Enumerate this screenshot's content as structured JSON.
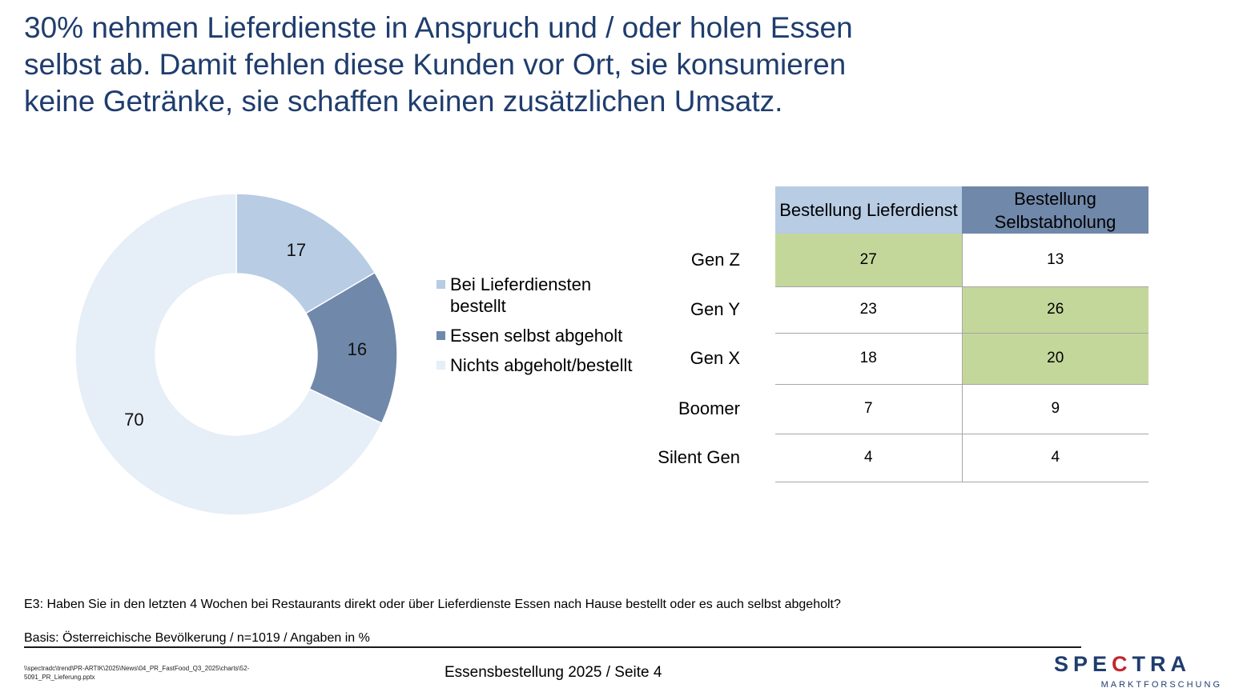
{
  "title": "30% nehmen Lieferdienste in Anspruch und / oder holen Essen selbst ab. Damit fehlen diese Kunden vor Ort, sie konsumieren keine Getränke, sie schaffen keinen zusätzlichen Umsatz.",
  "chart_data": [
    {
      "type": "pie",
      "style": "donut",
      "labels": [
        "Bei Lieferdiensten bestellt",
        "Essen selbst abgeholt",
        "Nichts abgeholt/bestellt"
      ],
      "values": [
        17,
        16,
        70
      ],
      "value_labels": [
        "17",
        "16",
        "70"
      ],
      "colors": [
        "#b8cce4",
        "#7088aa",
        "#e6eef7"
      ],
      "legend_position": "right"
    },
    {
      "type": "table",
      "columns": [
        "Bestellung Lieferdienst",
        "Bestellung Selbstabholung"
      ],
      "column_colors": [
        "#b8cce4",
        "#7088aa"
      ],
      "highlight_color": "#c4d79b",
      "rows": [
        {
          "label": "Gen Z",
          "values": [
            "27",
            "13"
          ],
          "highlight": [
            true,
            false
          ]
        },
        {
          "label": "Gen Y",
          "values": [
            "23",
            "26"
          ],
          "highlight": [
            false,
            true
          ]
        },
        {
          "label": "Gen X",
          "values": [
            "18",
            "20"
          ],
          "highlight": [
            false,
            true
          ]
        },
        {
          "label": "Boomer",
          "values": [
            "7",
            "9"
          ],
          "highlight": [
            false,
            false
          ]
        },
        {
          "label": "Silent Gen",
          "values": [
            "4",
            "4"
          ],
          "highlight": [
            false,
            false
          ]
        }
      ]
    }
  ],
  "question": "E3: Haben Sie in den letzten 4 Wochen bei Restaurants direkt oder über Lieferdienste Essen nach Hause bestellt oder es auch selbst abgeholt?",
  "basis": "Basis: Österreichische Bevölkerung / n=1019 / Angaben in %",
  "file_path": "\\\\spectradc\\trend\\PR-ARTIK\\2025\\News\\04_PR_FastFood_Q3_2025\\charts\\52-5091_PR_Lieferung.pptx",
  "footer": "Essensbestellung 2025  /  Seite 4",
  "logo": {
    "part1": "SPE",
    "part2": "C",
    "part3": "TRA",
    "subtitle": "MARKTFORSCHUNG"
  }
}
